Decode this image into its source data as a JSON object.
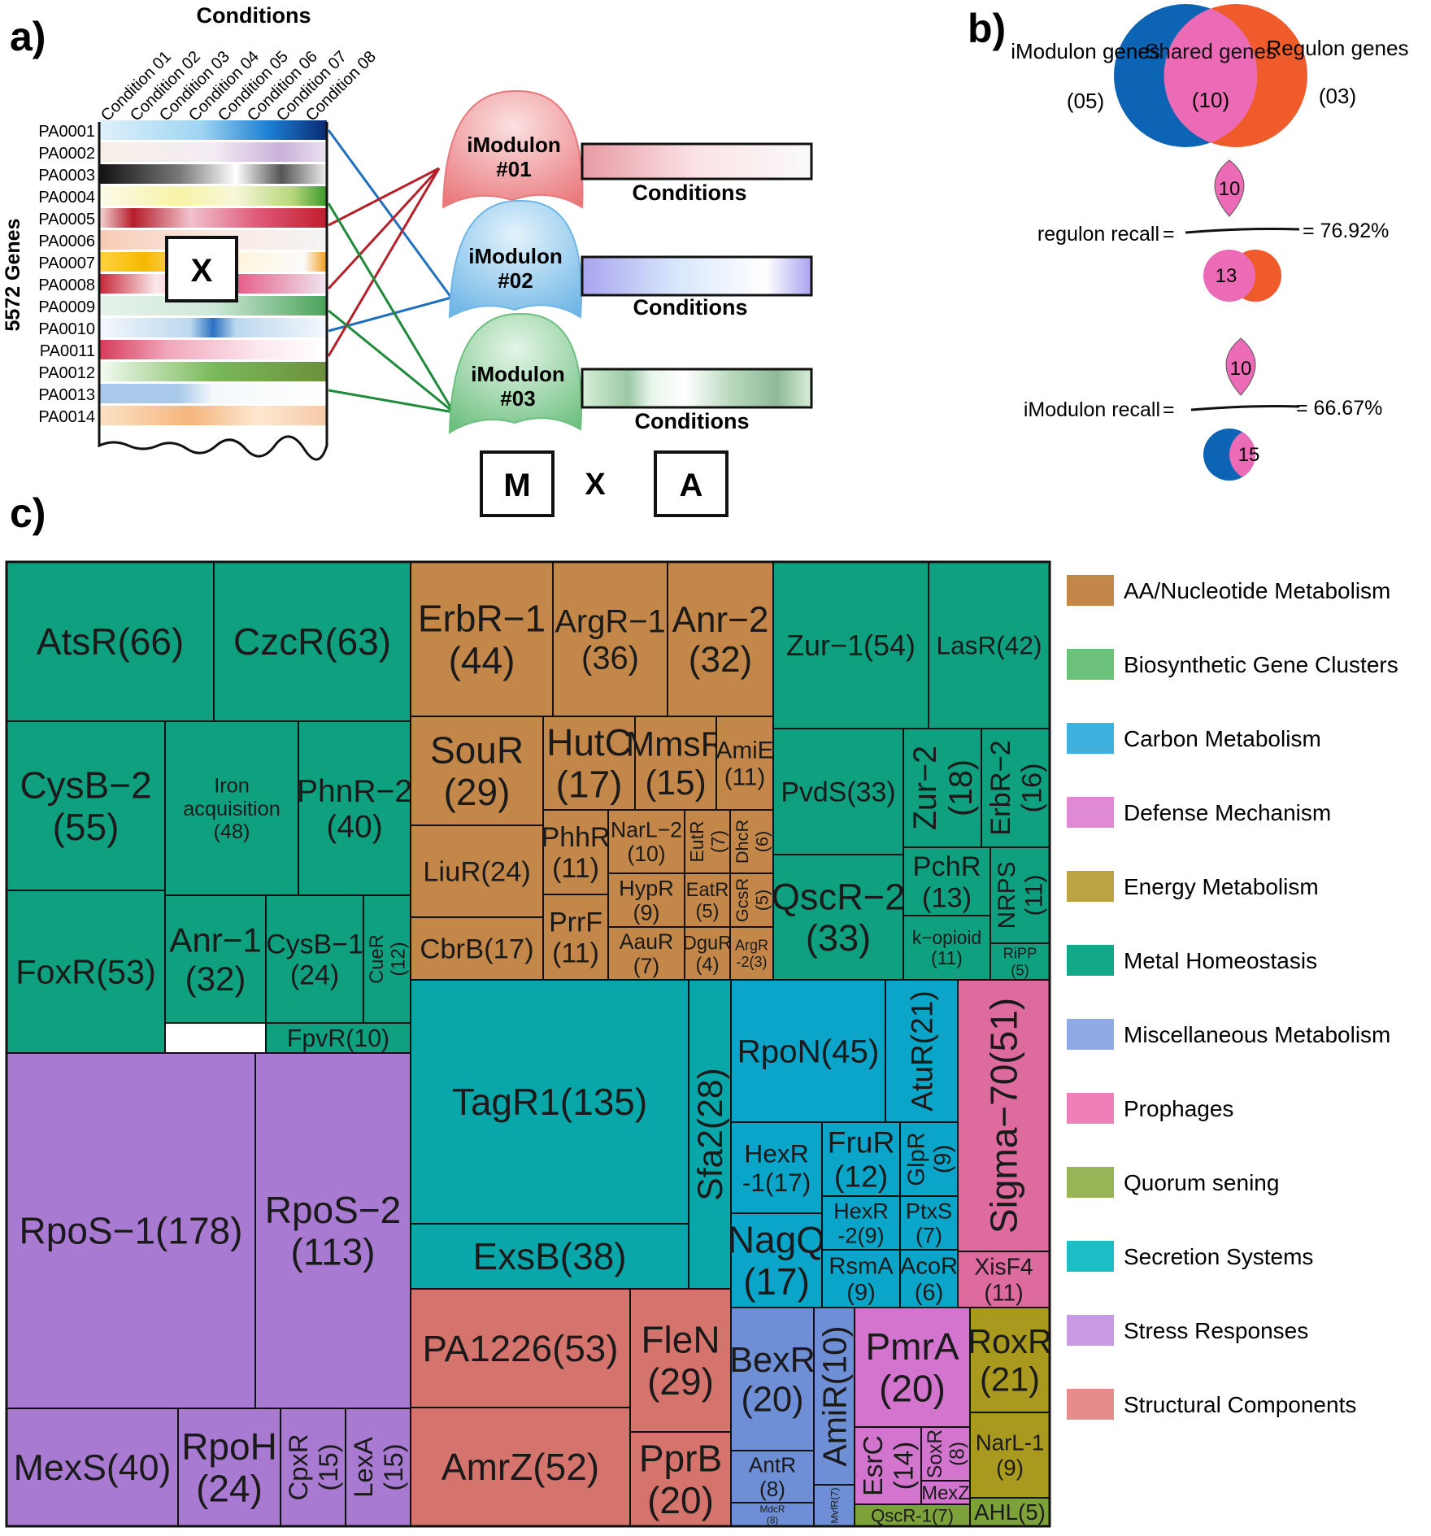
{
  "panel_a": {
    "label": "a)",
    "conditions_title": "Conditions",
    "conditions": [
      "Condition 01",
      "Condition 02",
      "Condition 03",
      "Condition 04",
      "Condition 05",
      "Condition 06",
      "Condition 07",
      "Condition 08"
    ],
    "genes_axis": "5572 Genes",
    "genes": [
      "PA0001",
      "PA0002",
      "PA0003",
      "PA0004",
      "PA0005",
      "PA0006",
      "PA0007",
      "PA0008",
      "PA0009",
      "PA0010",
      "PA0011",
      "PA0012",
      "PA0013",
      "PA0014"
    ],
    "x_symbol": "X",
    "imodulons": [
      {
        "name": "iModulon",
        "id": "#01",
        "conditions_label": "Conditions"
      },
      {
        "name": "iModulon",
        "id": "#02",
        "conditions_label": "Conditions"
      },
      {
        "name": "iModulon",
        "id": "#03",
        "conditions_label": "Conditions"
      }
    ],
    "m_symbol": "M",
    "times_symbol": "X",
    "a_symbol": "A",
    "colors": {
      "imodulon1": "#e9787c",
      "imodulon2": "#6fb6e6",
      "imodulon3": "#6dbf7f",
      "link_red": "#b5202a",
      "link_blue": "#1f6fbf",
      "link_green": "#1e8a3a"
    }
  },
  "panel_b": {
    "label": "b)",
    "imodulon_genes_label": "iModulon genes",
    "imodulon_genes_count": "(05)",
    "shared_label": "Shared genes",
    "shared_count": "(10)",
    "regulon_genes_label": "Regulon genes",
    "regulon_genes_count": "(03)",
    "regulon_recall_label": "regulon recall",
    "regulon_recall_num": "10",
    "regulon_recall_den": "13",
    "regulon_recall_value": "= 76.92%",
    "imodulon_recall_label": "iModulon recall",
    "imodulon_recall_num": "10",
    "imodulon_recall_den": "15",
    "imodulon_recall_value": "= 66.67%",
    "equals": "=",
    "colors": {
      "imodulon": "#0d64b5",
      "regulon": "#ef5b2b",
      "shared": "#ec6bb6"
    }
  },
  "panel_c": {
    "label": "c)",
    "categories": [
      {
        "name": "AA/Nucleotide Metabolism",
        "color": "#c4874a"
      },
      {
        "name": "Biosynthetic Gene Clusters",
        "color": "#6cc17b"
      },
      {
        "name": "Carbon Metabolism",
        "color": "#3eb1df"
      },
      {
        "name": "Defense Mechanism",
        "color": "#e08ad6"
      },
      {
        "name": "Energy Metabolism",
        "color": "#bca445"
      },
      {
        "name": "Metal Homeostasis",
        "color": "#12a888"
      },
      {
        "name": "Miscellaneous Metabolism",
        "color": "#8faae4"
      },
      {
        "name": "Prophages",
        "color": "#ef7fb8"
      },
      {
        "name": "Quorum sening",
        "color": "#98b457"
      },
      {
        "name": "Secretion Systems",
        "color": "#1cbdc4"
      },
      {
        "name": "Stress Responses",
        "color": "#c89be4"
      },
      {
        "name": "Structural Components",
        "color": "#e78c8c"
      }
    ],
    "tiles": [
      {
        "lines": [
          "AtsR(66)"
        ],
        "cat": 5
      },
      {
        "lines": [
          "CzcR(63)"
        ],
        "cat": 5
      },
      {
        "lines": [
          "CysB−2",
          "(55)"
        ],
        "cat": 5
      },
      {
        "lines": [
          "Iron",
          "acquisition",
          "(48)"
        ],
        "cat": 5
      },
      {
        "lines": [
          "PhnR−2",
          "(40)"
        ],
        "cat": 5
      },
      {
        "lines": [
          "FoxR(53)"
        ],
        "cat": 5
      },
      {
        "lines": [
          "Anr−1",
          "(32)"
        ],
        "cat": 5
      },
      {
        "lines": [
          "CysB−1",
          "(24)"
        ],
        "cat": 5
      },
      {
        "lines": [
          "CueR",
          "(12)"
        ],
        "cat": 5,
        "rot": true
      },
      {
        "lines": [
          "FpvR(10)"
        ],
        "cat": 5
      },
      {
        "lines": [
          "ErbR−1",
          "(44)"
        ],
        "cat": 0
      },
      {
        "lines": [
          "ArgR−1",
          "(36)"
        ],
        "cat": 0
      },
      {
        "lines": [
          "Anr−2",
          "(32)"
        ],
        "cat": 0
      },
      {
        "lines": [
          "SouR",
          "(29)"
        ],
        "cat": 0
      },
      {
        "lines": [
          "HutC",
          "(17)"
        ],
        "cat": 0
      },
      {
        "lines": [
          "MmsR",
          "(15)"
        ],
        "cat": 0
      },
      {
        "lines": [
          "AmiE",
          "(11)"
        ],
        "cat": 0
      },
      {
        "lines": [
          "LiuR(24)"
        ],
        "cat": 0
      },
      {
        "lines": [
          "PhhR",
          "(11)"
        ],
        "cat": 0
      },
      {
        "lines": [
          "NarL−2",
          "(10)"
        ],
        "cat": 0
      },
      {
        "lines": [
          "EutR",
          "(7)"
        ],
        "cat": 0,
        "rot": true
      },
      {
        "lines": [
          "DhcR",
          "(6)"
        ],
        "cat": 0,
        "rot": true
      },
      {
        "lines": [
          "HypR",
          "(9)"
        ],
        "cat": 0
      },
      {
        "lines": [
          "EatR",
          "(5)"
        ],
        "cat": 0
      },
      {
        "lines": [
          "GcsR",
          "(5)"
        ],
        "cat": 0,
        "rot": true
      },
      {
        "lines": [
          "CbrB(17)"
        ],
        "cat": 0
      },
      {
        "lines": [
          "PrrF",
          "(11)"
        ],
        "cat": 0
      },
      {
        "lines": [
          "AauR",
          "(7)"
        ],
        "cat": 0
      },
      {
        "lines": [
          "DguR",
          "(4)"
        ],
        "cat": 0
      },
      {
        "lines": [
          "ArgR",
          "-2(3)"
        ],
        "cat": 0
      },
      {
        "lines": [
          "Zur−1(54)"
        ],
        "cat": 5
      },
      {
        "lines": [
          "LasR(42)"
        ],
        "cat": 5
      },
      {
        "lines": [
          "PvdS(33)"
        ],
        "cat": 5
      },
      {
        "lines": [
          "Zur−2",
          "(18)"
        ],
        "cat": 5,
        "rot": true
      },
      {
        "lines": [
          "ErbR−2",
          "(16)"
        ],
        "cat": 5,
        "rot": true
      },
      {
        "lines": [
          "QscR−2",
          "(33)"
        ],
        "cat": 5
      },
      {
        "lines": [
          "PchR",
          "(13)"
        ],
        "cat": 5
      },
      {
        "lines": [
          "NRPS",
          "(11)"
        ],
        "cat": 5,
        "rot": true
      },
      {
        "lines": [
          "k−opioid",
          "(11)"
        ],
        "cat": 5
      },
      {
        "lines": [
          "RiPP",
          "(5)"
        ],
        "cat": 5
      },
      {
        "lines": [
          "RpoS−1(178)"
        ],
        "cat": 10
      },
      {
        "lines": [
          "RpoS−2",
          "(113)"
        ],
        "cat": 10
      },
      {
        "lines": [
          "MexS(40)"
        ],
        "cat": 10
      },
      {
        "lines": [
          "RpoH",
          "(24)"
        ],
        "cat": 10
      },
      {
        "lines": [
          "CpxR",
          "(15)"
        ],
        "cat": 10,
        "rot": true
      },
      {
        "lines": [
          "LexA",
          "(15)"
        ],
        "cat": 10,
        "rot": true
      },
      {
        "lines": [
          "TagR1(135)"
        ],
        "cat": 9
      },
      {
        "lines": [
          "ExsB(38)"
        ],
        "cat": 9
      },
      {
        "lines": [
          "Sfa2(28)"
        ],
        "cat": 9,
        "rot": true
      },
      {
        "lines": [
          "RpoN(45)"
        ],
        "cat": 2
      },
      {
        "lines": [
          "AtuR(21)"
        ],
        "cat": 2,
        "rot": true
      },
      {
        "lines": [
          "HexR",
          "-1(17)"
        ],
        "cat": 2
      },
      {
        "lines": [
          "FruR",
          "(12)"
        ],
        "cat": 2
      },
      {
        "lines": [
          "GlpR",
          "(9)"
        ],
        "cat": 2,
        "rot": true
      },
      {
        "lines": [
          "NagQ",
          "(17)"
        ],
        "cat": 2
      },
      {
        "lines": [
          "HexR",
          "-2(9)"
        ],
        "cat": 2
      },
      {
        "lines": [
          "PtxS",
          "(7)"
        ],
        "cat": 2
      },
      {
        "lines": [
          "RsmA",
          "(9)"
        ],
        "cat": 2
      },
      {
        "lines": [
          "AcoR",
          "(6)"
        ],
        "cat": 2
      },
      {
        "lines": [
          "Sigma−70(51)"
        ],
        "cat": 7,
        "rot": true
      },
      {
        "lines": [
          "XisF4",
          "(11)"
        ],
        "cat": 7
      },
      {
        "lines": [
          "PA1226(53)"
        ],
        "cat": 11
      },
      {
        "lines": [
          "FleN",
          "(29)"
        ],
        "cat": 11
      },
      {
        "lines": [
          "AmrZ(52)"
        ],
        "cat": 11
      },
      {
        "lines": [
          "PprB",
          "(20)"
        ],
        "cat": 11
      },
      {
        "lines": [
          "BexR",
          "(20)"
        ],
        "cat": 6
      },
      {
        "lines": [
          "AmiR(10)"
        ],
        "cat": 6,
        "rot": true
      },
      {
        "lines": [
          "AntR",
          "(8)"
        ],
        "cat": 6
      },
      {
        "lines": [
          "MdcR",
          "(8)"
        ],
        "cat": 6
      },
      {
        "lines": [
          "MvfR(7)"
        ],
        "cat": 6,
        "rot": true
      },
      {
        "lines": [
          "PmrA",
          "(20)"
        ],
        "cat": 3
      },
      {
        "lines": [
          "EsrC",
          "(14)"
        ],
        "cat": 3,
        "rot": true
      },
      {
        "lines": [
          "SoxR",
          "(8)"
        ],
        "cat": 3,
        "rot": true
      },
      {
        "lines": [
          "MexZ"
        ],
        "cat": 3
      },
      {
        "lines": [
          "RoxR",
          "(21)"
        ],
        "cat": 4
      },
      {
        "lines": [
          "NarL-1",
          "(9)"
        ],
        "cat": 4
      },
      {
        "lines": [
          "QscR-1(7)"
        ],
        "cat": 8
      },
      {
        "lines": [
          "AHL(5)"
        ],
        "cat": 8
      }
    ]
  }
}
